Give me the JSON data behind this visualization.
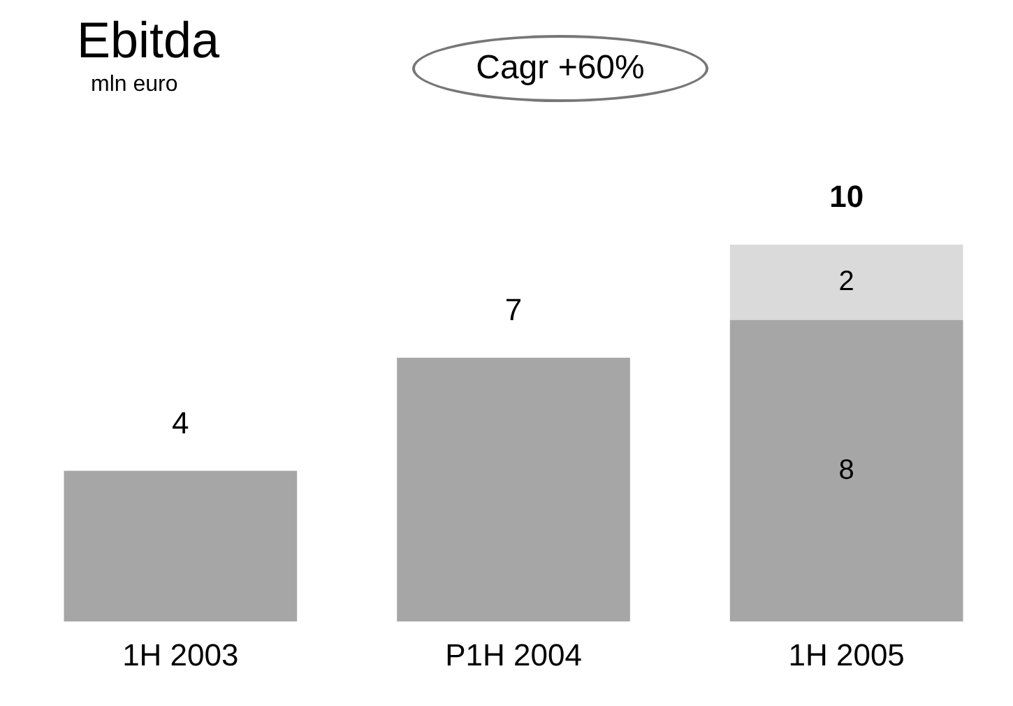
{
  "chart_data": {
    "type": "bar",
    "title": "Ebitda",
    "subtitle": "mln euro",
    "annotations": [
      "Cagr +60%"
    ],
    "categories": [
      "1H 2003",
      "P1H 2004",
      "1H 2005"
    ],
    "stacked": true,
    "series": [
      {
        "color": "#a6a6a6",
        "values": [
          4,
          7,
          8
        ],
        "value_labels": [
          null,
          null,
          "8"
        ]
      },
      {
        "color": "#dadada",
        "values": [
          null,
          null,
          2
        ],
        "value_labels": [
          null,
          null,
          "2"
        ]
      }
    ],
    "totals": [
      "4",
      "7",
      "10"
    ],
    "legend": false,
    "grid": false
  }
}
